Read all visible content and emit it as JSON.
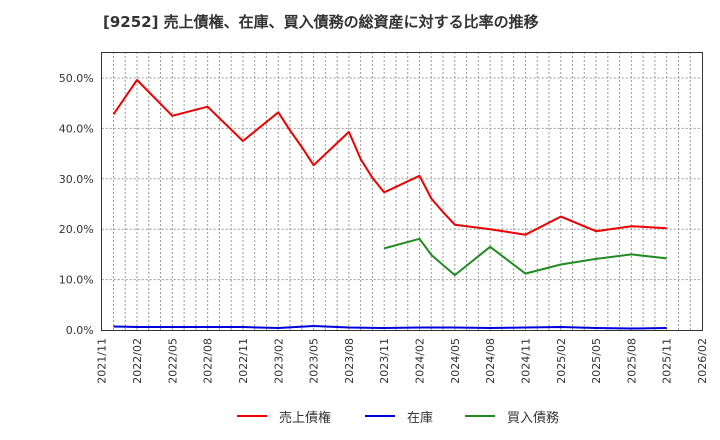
{
  "title": "[9252]  売上債権、在庫、買入債務の総資産に対する比率の推移",
  "colors": {
    "receivables": "#ee0000",
    "inventory": "#0000dd",
    "payables": "#228b22",
    "axis": "#333333",
    "grid": "#999999"
  },
  "legend": [
    {
      "label": "売上債権",
      "color": "#ee0000"
    },
    {
      "label": "在庫",
      "color": "#0000dd"
    },
    {
      "label": "買入債務",
      "color": "#228b22"
    }
  ],
  "chart_data": {
    "type": "line",
    "title": "[9252]  売上債権、在庫、買入債務の総資産に対する比率の推移",
    "xlabel": "",
    "ylabel": "",
    "ylim": [
      0,
      55
    ],
    "yticks": [
      "0.0%",
      "10.0%",
      "20.0%",
      "30.0%",
      "40.0%",
      "50.0%"
    ],
    "ytick_values": [
      0,
      10,
      20,
      30,
      40,
      50
    ],
    "xlim": [
      "2021/11",
      "2026/02"
    ],
    "xticks": [
      "2021/11",
      "2022/02",
      "2022/05",
      "2022/08",
      "2022/11",
      "2023/02",
      "2023/05",
      "2023/08",
      "2023/11",
      "2024/02",
      "2024/05",
      "2024/08",
      "2024/11",
      "2025/02",
      "2025/05",
      "2025/08",
      "2025/11",
      "2026/02"
    ],
    "grid": true,
    "legend_position": "bottom",
    "series": [
      {
        "name": "売上債権",
        "color": "#ee0000",
        "x": [
          "2021/12",
          "2022/02",
          "2022/05",
          "2022/08",
          "2022/11",
          "2023/02",
          "2023/03",
          "2023/04",
          "2023/05",
          "2023/08",
          "2023/09",
          "2023/10",
          "2023/11",
          "2024/02",
          "2024/03",
          "2024/04",
          "2024/05",
          "2024/08",
          "2024/11",
          "2025/02",
          "2025/05",
          "2025/08",
          "2025/11"
        ],
        "values": [
          42.8,
          49.6,
          42.5,
          44.3,
          37.5,
          43.2,
          39.6,
          36.3,
          32.7,
          39.3,
          33.9,
          30.2,
          27.3,
          30.6,
          26.1,
          23.4,
          20.9,
          20.0,
          18.9,
          22.5,
          19.6,
          20.6,
          20.2
        ]
      },
      {
        "name": "在庫",
        "color": "#0000dd",
        "x": [
          "2021/12",
          "2022/02",
          "2022/05",
          "2022/08",
          "2022/11",
          "2023/02",
          "2023/05",
          "2023/08",
          "2023/11",
          "2024/02",
          "2024/05",
          "2024/08",
          "2024/11",
          "2025/02",
          "2025/05",
          "2025/08",
          "2025/11"
        ],
        "values": [
          0.7,
          0.6,
          0.6,
          0.6,
          0.6,
          0.4,
          0.8,
          0.5,
          0.4,
          0.5,
          0.5,
          0.4,
          0.5,
          0.6,
          0.4,
          0.3,
          0.4
        ]
      },
      {
        "name": "買入債務",
        "color": "#228b22",
        "x": [
          "2023/11",
          "2024/02",
          "2024/03",
          "2024/04",
          "2024/05",
          "2024/08",
          "2024/11",
          "2025/02",
          "2025/05",
          "2025/08",
          "2025/11"
        ],
        "values": [
          16.2,
          18.1,
          14.9,
          12.9,
          10.9,
          16.5,
          11.2,
          13.0,
          14.1,
          15.0,
          14.2
        ]
      }
    ]
  }
}
